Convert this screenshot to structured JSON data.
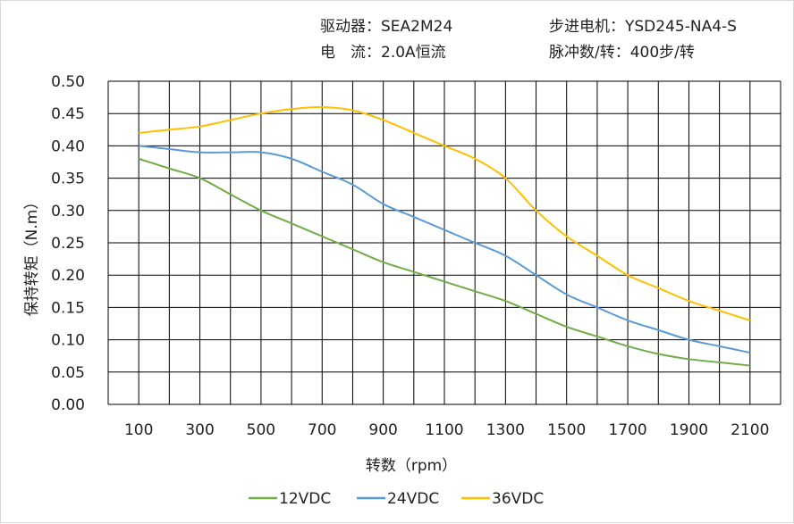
{
  "header": {
    "driver": "驱动器：SEA2M24",
    "motor": "步进电机：YSD245-NA4-S",
    "current": "电　流：2.0A恒流",
    "pulses": "脉冲数/转：400步/转"
  },
  "chart_data": {
    "type": "line",
    "title": "",
    "xlabel": "转数（rpm）",
    "ylabel": "保持转矩（N.m）",
    "xlim": [
      0,
      2200
    ],
    "ylim": [
      0,
      0.5
    ],
    "xticks": [
      100,
      300,
      500,
      700,
      900,
      1100,
      1300,
      1500,
      1700,
      1900,
      2100
    ],
    "yticks": [
      "0.00",
      "0.05",
      "0.10",
      "0.15",
      "0.20",
      "0.25",
      "0.30",
      "0.35",
      "0.40",
      "0.45",
      "0.50"
    ],
    "grid": true,
    "legend_position": "bottom",
    "x": [
      100,
      200,
      300,
      400,
      500,
      600,
      700,
      800,
      900,
      1000,
      1100,
      1200,
      1300,
      1400,
      1500,
      1600,
      1700,
      1800,
      1900,
      2000,
      2100
    ],
    "series": [
      {
        "name": "12VDC",
        "color": "#70ad47",
        "values": [
          0.38,
          0.365,
          0.35,
          0.325,
          0.3,
          0.28,
          0.26,
          0.24,
          0.22,
          0.205,
          0.19,
          0.175,
          0.16,
          0.14,
          0.12,
          0.105,
          0.09,
          0.078,
          0.07,
          0.065,
          0.06
        ]
      },
      {
        "name": "24VDC",
        "color": "#5b9bd5",
        "values": [
          0.4,
          0.395,
          0.39,
          0.39,
          0.39,
          0.38,
          0.36,
          0.34,
          0.31,
          0.29,
          0.27,
          0.25,
          0.23,
          0.2,
          0.17,
          0.15,
          0.13,
          0.115,
          0.1,
          0.09,
          0.08
        ]
      },
      {
        "name": "36VDC",
        "color": "#ffc000",
        "values": [
          0.42,
          0.425,
          0.43,
          0.44,
          0.45,
          0.457,
          0.46,
          0.455,
          0.44,
          0.42,
          0.4,
          0.38,
          0.35,
          0.3,
          0.26,
          0.23,
          0.2,
          0.18,
          0.16,
          0.145,
          0.13
        ]
      }
    ]
  }
}
